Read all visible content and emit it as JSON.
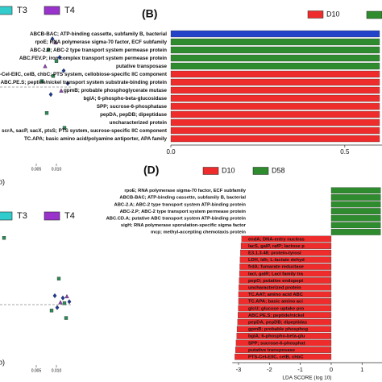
{
  "chart_data": [
    {
      "type": "scatter",
      "xlabel": "b)",
      "legend": [
        {
          "name": "T3",
          "color": "#33cccc"
        },
        {
          "name": "T4",
          "color": "#9933cc"
        }
      ],
      "xlim": [
        -0.004,
        0.014
      ],
      "ylim": [
        -0.01,
        0.01
      ],
      "xticks": [
        0.005,
        {
          "value": 0.01,
          "label": "0.010"
        }
      ],
      "reference_line": 0,
      "series": [
        {
          "color": "#2e8b57",
          "marker": "square",
          "x": [
            0.008,
            0.01,
            0.0076,
            0.0092,
            0.012,
            0.0064
          ],
          "y": [
            0.005,
            0.0035,
            -0.0035,
            0.0015,
            -0.0055,
            0.0008
          ]
        },
        {
          "color": "#1f3a93",
          "marker": "diamond",
          "x": [
            0.009,
            0.0108,
            0.0118,
            0.0086,
            0.0128
          ],
          "y": [
            0.0065,
            0.004,
            0.0022,
            -0.001,
            0.0005
          ]
        },
        {
          "color": "#8e44ad",
          "marker": "triangle",
          "x": [
            0.0072,
            0.0112,
            0.0098
          ],
          "y": [
            0.0028,
            -0.0005,
            0.006
          ]
        }
      ]
    },
    {
      "type": "bar",
      "title": "(B)",
      "legend": [
        {
          "name": "D10",
          "color": "#ee2c2c"
        }
      ],
      "categories": [
        "ABCB-BAC; ATP-binding cassette, subfamily B, bacterial",
        "rpoE; RNA polymerase sigma-70 factor, ECF subfamily",
        "ABC-2.P; ABC-2 type transport system permease protein",
        "ABC.FEV.P; iron complex transport system permease protein",
        "putative transposase",
        "PTS-Cel-EIIC, celB, chbC; PTS system, cellobiose-specific IIC component",
        "ABC.PE.S; peptide/nickel transport system substrate-binding protein",
        "gpmB; probable phosphoglycerate mutase",
        "bglA; 6-phospho-beta-glucosidase",
        "SPP; sucrose-6-phosphatase",
        "pepDA, pepDB; dipeptidase",
        "uncharacterized protein",
        "PTS-Scr-EIIC, scrA, sacP, sacX, ptsS; PTS system, sucrose-specific IIC component",
        "TC.APA; basic amino acid/polyamine antiporter, APA family"
      ],
      "values": [
        0.6,
        0.6,
        0.6,
        0.6,
        0.6,
        0.6,
        0.6,
        0.6,
        0.6,
        0.6,
        0.6,
        0.6,
        0.6,
        0.6
      ],
      "colors": [
        "#2343c8",
        "#2e8b2e",
        "#2e8b2e",
        "#2e8b2e",
        "#2e8b2e",
        "#ee2c2c",
        "#ee2c2c",
        "#ee2c2c",
        "#ee2c2c",
        "#ee2c2c",
        "#ee2c2c",
        "#ee2c2c",
        "#ee2c2c",
        "#ee2c2c"
      ],
      "xlim": [
        0,
        0.6
      ],
      "xticks": [
        {
          "value": 0,
          "label": "0.0"
        },
        0.5
      ]
    },
    {
      "type": "scatter",
      "xlabel": "b)",
      "legend": [
        {
          "name": "T3",
          "color": "#33cccc"
        },
        {
          "name": "T4",
          "color": "#9933cc"
        }
      ],
      "xlim": [
        -0.004,
        0.014
      ],
      "ylim": [
        -0.01,
        0.01
      ],
      "xticks": [
        0.005,
        {
          "value": 0.01,
          "label": "0.010"
        }
      ],
      "reference_line": 0,
      "series": [
        {
          "color": "#2e8b57",
          "marker": "square",
          "x": [
            0.012,
            0.0088,
            0.0106,
            0.0124,
            -0.003
          ],
          "y": [
            0.0002,
            -0.0008,
            0.0035,
            -0.0018,
            0.009
          ]
        },
        {
          "color": "#1f3a93",
          "marker": "diamond",
          "x": [
            0.0096,
            0.0132,
            0.0116,
            0.0102
          ],
          "y": [
            0.0012,
            0.0004,
            0.0009,
            -0.0004
          ]
        },
        {
          "color": "#8e44ad",
          "marker": "triangle",
          "x": [
            0.011,
            0.0126
          ],
          "y": [
            0.0003,
            0.0011
          ]
        }
      ]
    },
    {
      "type": "bar",
      "title": "(D)",
      "xlabel": "LDA SCORE (log 10)",
      "legend": [
        {
          "name": "D10",
          "color": "#ee2c2c"
        },
        {
          "name": "D58",
          "color": "#2e8b2e"
        }
      ],
      "categories": [
        "rpoE; RNA polymerase sigma-70 factor, ECF subfamily",
        "ABCB-BAC; ATP-binding cassette, subfamily B, bacterial",
        "ABC-2.A; ABC-2 type transport system ATP-binding protein",
        "ABC-2.P; ABC-2 type transport system permease protein",
        "ABC.CD.A; putative ABC transport system ATP-binding protein",
        "sigH; RNA polymerase sporulation-specific sigma factor",
        "mcp; methyl-accepting chemotaxis protein",
        "endA; DNA-entry nucleas",
        "lacS, galP, rafP; lactose p",
        "E3.1.3.48; protein-tyrosi",
        "LDH, ldh; L-lactate dehyd",
        "frdA; fumarate reductase",
        "lacI, galR; LacI family tra",
        "pepO; putative endopept",
        "uncharacterized protein",
        "TC.AAT; amino acid ABC",
        "TC.APA; basic amino aci",
        "glcU; glucose uptake pro",
        "ABC.PE.S; peptide/nickel",
        "pepDA, pepDB; dipeptidas",
        "gpmB; probable phosphog",
        "bglA; 6-phospho-beta-glu",
        "SPP; sucrose-6-phosphat",
        "putative transposase",
        "PTS-Cel-EIIC, celB, chbC"
      ],
      "values": [
        1.6,
        1.6,
        1.6,
        1.6,
        1.6,
        1.6,
        1.6,
        -2.9,
        -2.92,
        -2.94,
        -2.95,
        -2.96,
        -2.97,
        -2.98,
        -2.99,
        -3.0,
        -3.0,
        -3.01,
        -3.02,
        -3.03,
        -3.05,
        -3.06,
        -3.08,
        -3.1,
        -3.12
      ],
      "colors": [
        "#2e8b2e",
        "#2e8b2e",
        "#2e8b2e",
        "#2e8b2e",
        "#2e8b2e",
        "#2e8b2e",
        "#2e8b2e",
        "#ee2c2c",
        "#ee2c2c",
        "#ee2c2c",
        "#ee2c2c",
        "#ee2c2c",
        "#ee2c2c",
        "#ee2c2c",
        "#ee2c2c",
        "#ee2c2c",
        "#ee2c2c",
        "#ee2c2c",
        "#ee2c2c",
        "#ee2c2c",
        "#ee2c2c",
        "#ee2c2c",
        "#ee2c2c",
        "#ee2c2c",
        "#ee2c2c"
      ],
      "xlim": [
        -3.2,
        1.65
      ],
      "xticks": [
        -3,
        -2,
        -1,
        0,
        1
      ]
    }
  ]
}
